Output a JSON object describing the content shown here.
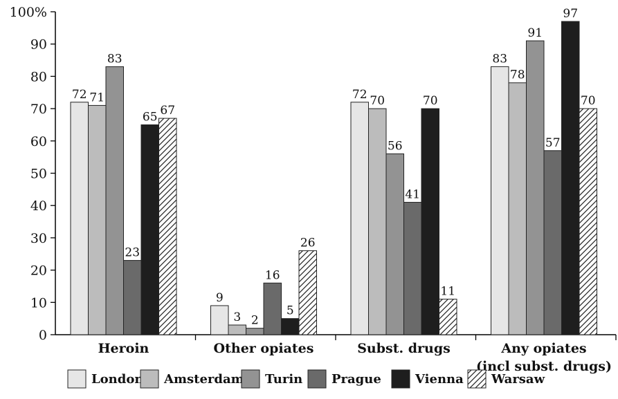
{
  "chart_data": {
    "type": "bar",
    "ylim": [
      0,
      100
    ],
    "yticks": [
      "0",
      "10",
      "20",
      "30",
      "40",
      "50",
      "60",
      "70",
      "80",
      "90",
      "100%"
    ],
    "categories": [
      "Heroin",
      "Other opiates",
      "Subst. drugs",
      "Any opiates"
    ],
    "category_sublabels": [
      "",
      "",
      "",
      "(incl subst. drugs)"
    ],
    "series": [
      {
        "name": "London",
        "color": "#e6e6e6",
        "pattern": "solid",
        "values": [
          72,
          9,
          72,
          83
        ]
      },
      {
        "name": "Amsterdam",
        "color": "#bcbcbc",
        "pattern": "solid",
        "values": [
          71,
          3,
          70,
          78
        ]
      },
      {
        "name": "Turin",
        "color": "#939393",
        "pattern": "solid",
        "values": [
          83,
          2,
          56,
          91
        ]
      },
      {
        "name": "Prague",
        "color": "#6a6a6a",
        "pattern": "solid",
        "values": [
          23,
          16,
          41,
          57
        ]
      },
      {
        "name": "Vienna",
        "color": "#1e1e1e",
        "pattern": "solid",
        "values": [
          65,
          5,
          70,
          97
        ]
      },
      {
        "name": "Warsaw",
        "color": "#ffffff",
        "pattern": "hatch",
        "values": [
          67,
          26,
          11,
          70
        ]
      }
    ],
    "legend_position": "bottom",
    "grid": false
  }
}
